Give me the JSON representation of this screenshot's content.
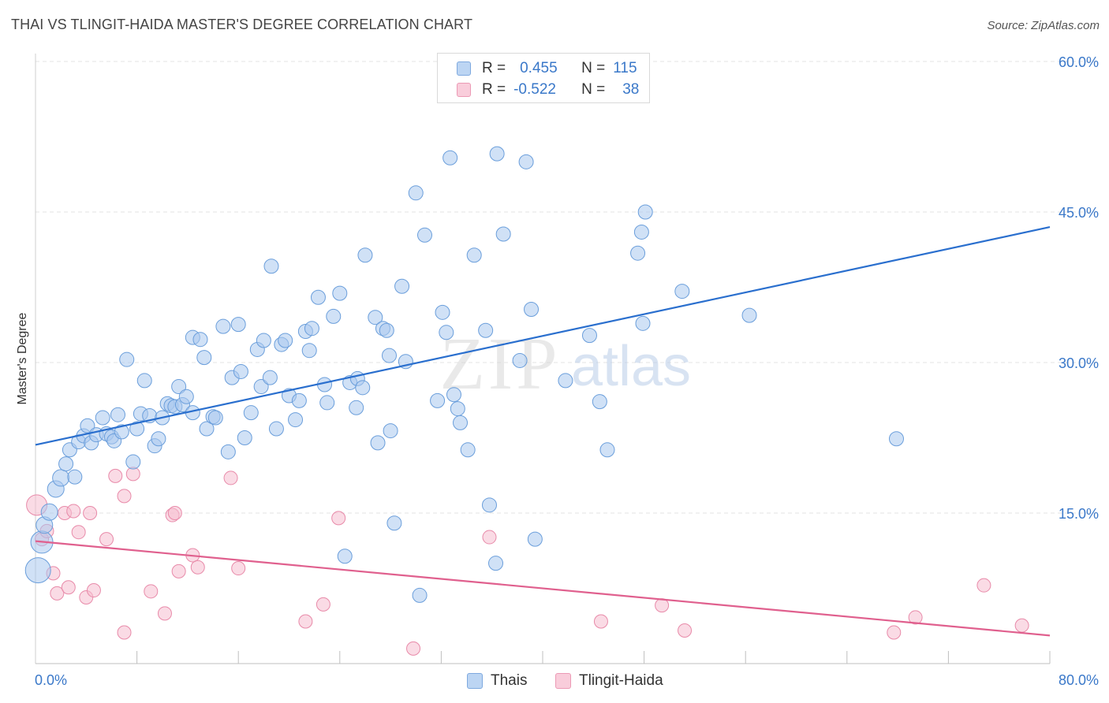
{
  "header": {
    "title": "THAI VS TLINGIT-HAIDA MASTER'S DEGREE CORRELATION CHART",
    "source": "Source: ZipAtlas.com"
  },
  "legend": {
    "r_label": "R =",
    "n_label": "N =",
    "thais": {
      "r": "0.455",
      "n": "115"
    },
    "tlingit": {
      "r": "-0.522",
      "n": "38"
    }
  },
  "watermark": {
    "zip": "ZIP",
    "atlas": "atlas"
  },
  "colors": {
    "blue_fill": "#a9c8ee",
    "blue_stroke": "#6a9edb",
    "blue_line": "#2a6fce",
    "pink_fill": "#f6bdd0",
    "pink_stroke": "#e88aa9",
    "pink_line": "#e0608e",
    "axis_text": "#3a78c9"
  },
  "chart_data": {
    "type": "scatter",
    "title": "THAI VS TLINGIT-HAIDA MASTER'S DEGREE CORRELATION CHART",
    "xlabel": "",
    "ylabel": "Master's Degree",
    "xlim": [
      0,
      80
    ],
    "ylim": [
      0,
      60
    ],
    "x_tick_labels": [
      "0.0%",
      "80.0%"
    ],
    "y_ticks": [
      15,
      30,
      45,
      60
    ],
    "y_tick_labels": [
      "15.0%",
      "30.0%",
      "45.0%",
      "60.0%"
    ],
    "grid": true,
    "legend_position": "top-center",
    "series": [
      {
        "name": "Thais",
        "r": 0.455,
        "n": 115,
        "trend": {
          "x": [
            0,
            80
          ],
          "y": [
            21.8,
            43.5
          ]
        },
        "points": [
          [
            0.2,
            9.3
          ],
          [
            0.5,
            12.1
          ],
          [
            0.7,
            13.8
          ],
          [
            1.1,
            15.1
          ],
          [
            1.6,
            17.4
          ],
          [
            2.0,
            18.5
          ],
          [
            2.4,
            19.9
          ],
          [
            2.7,
            21.3
          ],
          [
            3.1,
            18.6
          ],
          [
            3.4,
            22.1
          ],
          [
            3.8,
            22.7
          ],
          [
            4.1,
            23.7
          ],
          [
            4.4,
            22.0
          ],
          [
            4.8,
            22.8
          ],
          [
            5.3,
            24.5
          ],
          [
            5.6,
            22.9
          ],
          [
            6.0,
            22.6
          ],
          [
            6.2,
            22.2
          ],
          [
            6.5,
            24.8
          ],
          [
            6.8,
            23.1
          ],
          [
            7.2,
            30.3
          ],
          [
            7.7,
            20.1
          ],
          [
            8.0,
            23.4
          ],
          [
            8.3,
            24.9
          ],
          [
            8.6,
            28.2
          ],
          [
            9.0,
            24.7
          ],
          [
            9.4,
            21.7
          ],
          [
            9.7,
            22.4
          ],
          [
            10.0,
            24.5
          ],
          [
            10.4,
            25.9
          ],
          [
            10.7,
            25.7
          ],
          [
            11.0,
            25.6
          ],
          [
            11.3,
            27.6
          ],
          [
            11.6,
            25.8
          ],
          [
            11.9,
            26.6
          ],
          [
            12.4,
            25.0
          ],
          [
            12.4,
            32.5
          ],
          [
            13.0,
            32.3
          ],
          [
            13.3,
            30.5
          ],
          [
            13.5,
            23.4
          ],
          [
            14.0,
            24.6
          ],
          [
            14.2,
            24.5
          ],
          [
            14.8,
            33.6
          ],
          [
            15.2,
            21.1
          ],
          [
            15.5,
            28.5
          ],
          [
            16.0,
            33.8
          ],
          [
            16.2,
            29.1
          ],
          [
            16.5,
            22.5
          ],
          [
            17.0,
            25.0
          ],
          [
            17.5,
            31.3
          ],
          [
            17.8,
            27.6
          ],
          [
            18.0,
            32.2
          ],
          [
            18.5,
            28.5
          ],
          [
            18.6,
            39.6
          ],
          [
            19.0,
            23.4
          ],
          [
            19.4,
            31.8
          ],
          [
            19.7,
            32.2
          ],
          [
            20.0,
            26.7
          ],
          [
            20.5,
            24.3
          ],
          [
            20.8,
            26.2
          ],
          [
            21.3,
            33.1
          ],
          [
            21.6,
            31.2
          ],
          [
            21.8,
            33.4
          ],
          [
            22.3,
            36.5
          ],
          [
            22.8,
            27.8
          ],
          [
            23.0,
            26.0
          ],
          [
            23.5,
            34.6
          ],
          [
            24.0,
            36.9
          ],
          [
            24.4,
            10.7
          ],
          [
            24.8,
            28.0
          ],
          [
            25.3,
            25.5
          ],
          [
            25.4,
            28.4
          ],
          [
            25.8,
            27.5
          ],
          [
            26.0,
            40.7
          ],
          [
            26.8,
            34.5
          ],
          [
            27.0,
            22.0
          ],
          [
            27.4,
            33.4
          ],
          [
            27.7,
            33.2
          ],
          [
            27.9,
            30.7
          ],
          [
            28.0,
            23.2
          ],
          [
            28.3,
            14.0
          ],
          [
            28.9,
            37.6
          ],
          [
            29.2,
            30.1
          ],
          [
            30.0,
            46.9
          ],
          [
            30.3,
            6.8
          ],
          [
            30.7,
            42.7
          ],
          [
            31.7,
            26.2
          ],
          [
            32.1,
            35.0
          ],
          [
            32.4,
            33.0
          ],
          [
            32.7,
            50.4
          ],
          [
            33.0,
            26.8
          ],
          [
            33.3,
            25.4
          ],
          [
            33.5,
            24.0
          ],
          [
            34.1,
            21.3
          ],
          [
            34.6,
            40.7
          ],
          [
            35.5,
            33.2
          ],
          [
            35.8,
            15.8
          ],
          [
            36.3,
            10.0
          ],
          [
            36.4,
            50.8
          ],
          [
            36.9,
            42.8
          ],
          [
            38.2,
            30.2
          ],
          [
            38.7,
            50.0
          ],
          [
            39.1,
            35.3
          ],
          [
            39.4,
            12.4
          ],
          [
            41.8,
            28.2
          ],
          [
            43.7,
            32.7
          ],
          [
            44.5,
            26.1
          ],
          [
            45.1,
            21.3
          ],
          [
            47.5,
            40.9
          ],
          [
            47.8,
            43.0
          ],
          [
            47.9,
            33.9
          ],
          [
            48.1,
            45.0
          ],
          [
            51.0,
            37.1
          ],
          [
            56.3,
            34.7
          ],
          [
            67.9,
            22.4
          ]
        ]
      },
      {
        "name": "Tlingit-Haida",
        "r": -0.522,
        "n": 38,
        "trend": {
          "x": [
            0,
            80
          ],
          "y": [
            12.2,
            2.8
          ]
        },
        "points": [
          [
            0.1,
            15.8
          ],
          [
            0.5,
            12.4
          ],
          [
            0.9,
            13.2
          ],
          [
            1.4,
            9.0
          ],
          [
            1.7,
            7.0
          ],
          [
            2.3,
            15.0
          ],
          [
            2.6,
            7.6
          ],
          [
            3.0,
            15.2
          ],
          [
            3.4,
            13.1
          ],
          [
            4.0,
            6.6
          ],
          [
            4.3,
            15.0
          ],
          [
            4.6,
            7.3
          ],
          [
            5.6,
            12.4
          ],
          [
            6.3,
            18.7
          ],
          [
            7.0,
            16.7
          ],
          [
            7.0,
            3.1
          ],
          [
            7.7,
            18.9
          ],
          [
            9.1,
            7.2
          ],
          [
            10.2,
            5.0
          ],
          [
            10.8,
            14.8
          ],
          [
            11.0,
            15.0
          ],
          [
            11.3,
            9.2
          ],
          [
            12.4,
            10.8
          ],
          [
            12.8,
            9.6
          ],
          [
            15.4,
            18.5
          ],
          [
            16.0,
            9.5
          ],
          [
            21.3,
            4.2
          ],
          [
            22.7,
            5.9
          ],
          [
            23.9,
            14.5
          ],
          [
            29.8,
            1.5
          ],
          [
            35.8,
            12.6
          ],
          [
            44.6,
            4.2
          ],
          [
            49.4,
            5.8
          ],
          [
            51.2,
            3.3
          ],
          [
            67.7,
            3.1
          ],
          [
            69.4,
            4.6
          ],
          [
            74.8,
            7.8
          ],
          [
            77.8,
            3.8
          ]
        ]
      }
    ]
  }
}
